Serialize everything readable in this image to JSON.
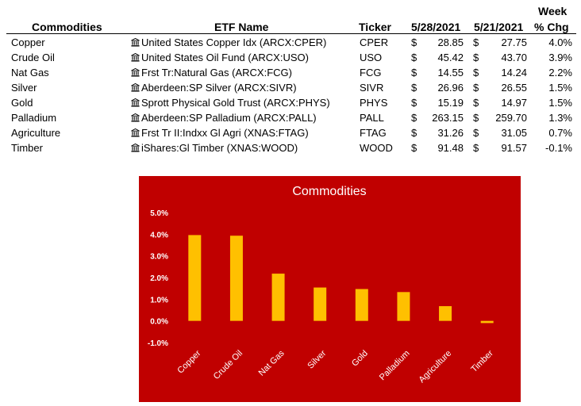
{
  "table": {
    "headers": {
      "commodity": "Commodities",
      "etf": "ETF Name",
      "ticker": "Ticker",
      "date1": "5/28/2021",
      "date2": "5/21/2021",
      "week_line1": "Week",
      "week_line2": "% Chg"
    },
    "currency": "$",
    "rows": [
      {
        "commodity": "Copper",
        "etf": "United States Copper Idx (ARCX:CPER)",
        "ticker": "CPER",
        "p1": "28.85",
        "p2": "27.75",
        "chg": "4.0%"
      },
      {
        "commodity": "Crude Oil",
        "etf": "United States Oil Fund (ARCX:USO)",
        "ticker": "USO",
        "p1": "45.42",
        "p2": "43.70",
        "chg": "3.9%"
      },
      {
        "commodity": "Nat Gas",
        "etf": "Frst Tr:Natural Gas (ARCX:FCG)",
        "ticker": "FCG",
        "p1": "14.55",
        "p2": "14.24",
        "chg": "2.2%"
      },
      {
        "commodity": "Silver",
        "etf": "Aberdeen:SP Silver (ARCX:SIVR)",
        "ticker": "SIVR",
        "p1": "26.96",
        "p2": "26.55",
        "chg": "1.5%"
      },
      {
        "commodity": "Gold",
        "etf": "Sprott Physical Gold Trust (ARCX:PHYS)",
        "ticker": "PHYS",
        "p1": "15.19",
        "p2": "14.97",
        "chg": "1.5%"
      },
      {
        "commodity": "Palladium",
        "etf": "Aberdeen:SP Palladium (ARCX:PALL)",
        "ticker": "PALL",
        "p1": "263.15",
        "p2": "259.70",
        "chg": "1.3%"
      },
      {
        "commodity": "Agriculture",
        "etf": "Frst Tr II:Indxx Gl Agri (XNAS:FTAG)",
        "ticker": "FTAG",
        "p1": "31.26",
        "p2": "31.05",
        "chg": "0.7%"
      },
      {
        "commodity": "Timber",
        "etf": "iShares:Gl Timber (XNAS:WOOD)",
        "ticker": "WOOD",
        "p1": "91.48",
        "p2": "91.57",
        "chg": "-0.1%"
      }
    ]
  },
  "chart_data": {
    "type": "bar",
    "title": "Commodities",
    "categories": [
      "Copper",
      "Crude Oil",
      "Nat Gas",
      "Silver",
      "Gold",
      "Palladium",
      "Agriculture",
      "Timber"
    ],
    "values": [
      0.0396,
      0.0393,
      0.0218,
      0.0154,
      0.0147,
      0.0133,
      0.0068,
      -0.001
    ],
    "ylim": [
      -0.01,
      0.05
    ],
    "yticks": [
      "-1.0%",
      "0.0%",
      "1.0%",
      "2.0%",
      "3.0%",
      "4.0%",
      "5.0%"
    ],
    "grid": false,
    "legend": "none",
    "colors": {
      "background": "#c00000",
      "bar": "#ffc000",
      "text": "#ffffff"
    }
  }
}
